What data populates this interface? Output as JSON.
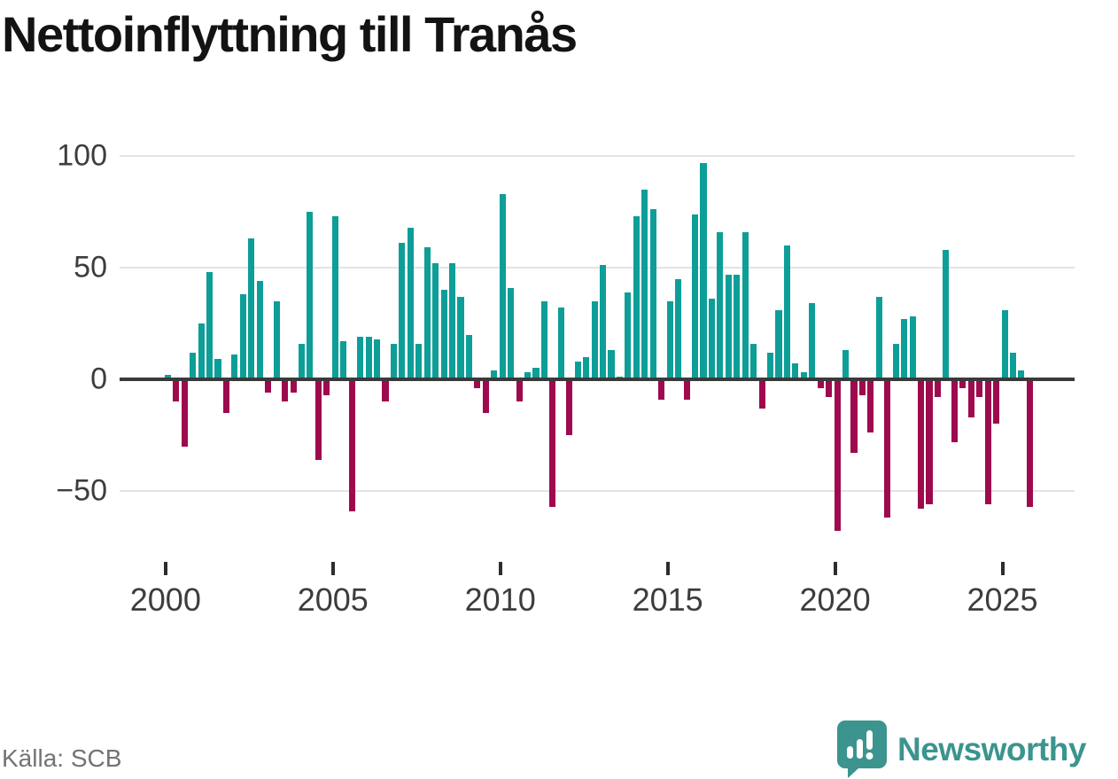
{
  "title": "Nettoinflyttning till Tranås",
  "source": "Källa: SCB",
  "branding": {
    "logo_text": "Newsworthy",
    "logo_color": "#3B948E"
  },
  "colors": {
    "positive_bar": "#0D9E98",
    "negative_bar": "#9E0A4D",
    "zero_axis": "#3A3A3A",
    "gridline": "#E3E3E3",
    "tick_label": "#3D3D3D",
    "source_text": "#737373"
  },
  "chart_data": {
    "type": "bar",
    "title": "Nettoinflyttning till Tranås",
    "x_start_year": 2000,
    "frequency": "quarterly",
    "ylim": [
      -75,
      110
    ],
    "grid": "horizontal",
    "y_axis": {
      "ticks": [
        100,
        50,
        0,
        -50
      ],
      "tick_labels": [
        "100",
        "50",
        "0",
        "−50"
      ]
    },
    "x_axis": {
      "ticks": [
        2000,
        2005,
        2010,
        2015,
        2020,
        2025
      ],
      "tick_labels": [
        "2000",
        "2005",
        "2010",
        "2015",
        "2020",
        "2025"
      ]
    },
    "series": [
      {
        "name": "Nettoinflyttning",
        "values": [
          2,
          -10,
          -30,
          12,
          25,
          48,
          9,
          -15,
          11,
          38,
          63,
          44,
          -6,
          35,
          -10,
          -6,
          16,
          75,
          -36,
          -7,
          73,
          17,
          -59,
          19,
          19,
          18,
          -10,
          16,
          61,
          68,
          16,
          59,
          52,
          40,
          52,
          37,
          20,
          -4,
          -15,
          4,
          83,
          41,
          -10,
          3,
          5,
          35,
          -57,
          32,
          -25,
          8,
          10,
          35,
          51,
          13,
          1,
          39,
          73,
          85,
          76,
          -9,
          35,
          45,
          -9,
          74,
          97,
          36,
          66,
          47,
          47,
          66,
          16,
          -13,
          12,
          31,
          60,
          7,
          3,
          34,
          -4,
          -8,
          -68,
          13,
          -33,
          -7,
          -24,
          37,
          -62,
          16,
          27,
          28,
          -58,
          -56,
          -8,
          58,
          -28,
          -4,
          -17,
          -8,
          -56,
          -20,
          31,
          12,
          4,
          -57
        ]
      }
    ]
  }
}
